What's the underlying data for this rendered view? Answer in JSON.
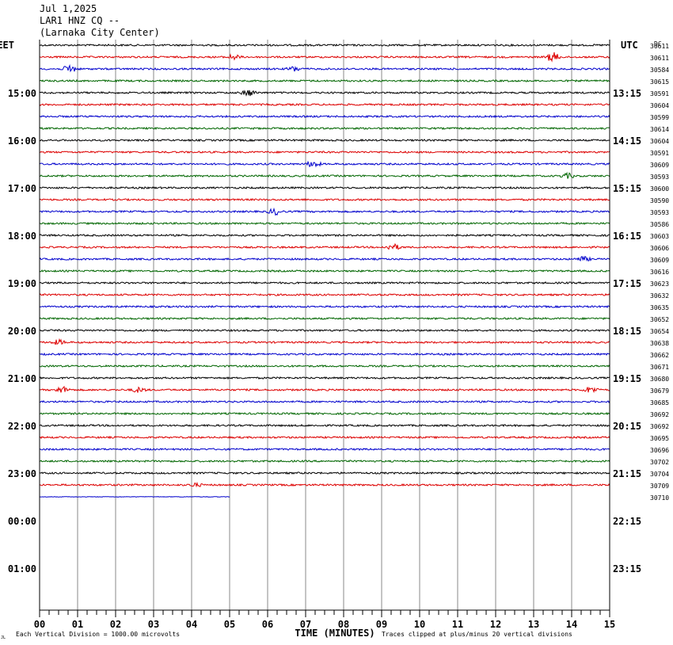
{
  "header": {
    "date": "Jul 1,2025",
    "station": "LAR1 HNZ CQ --",
    "location": "(Larnaka City Center)"
  },
  "left_zone": "EET",
  "right_zone": "UTC",
  "dc_label": "DC",
  "footer": {
    "scale_note": "Each Vertical Division = 1000.00 microvolts",
    "x_title": "TIME (MINUTES)",
    "clip_note": "Traces clipped at plus/minus 20 vertical divisions",
    "corner_mark": "JL"
  },
  "colors": {
    "cycle": [
      "#000000",
      "#dd0000",
      "#0000cc",
      "#006600"
    ],
    "grid": "#888888",
    "axis": "#000000"
  },
  "chart_data": {
    "type": "line",
    "title": "",
    "xlabel": "TIME (MINUTES)",
    "xlim": [
      0,
      15
    ],
    "x_ticks": [
      "00",
      "01",
      "02",
      "03",
      "04",
      "05",
      "06",
      "07",
      "08",
      "09",
      "10",
      "11",
      "12",
      "13",
      "14",
      "15"
    ],
    "rows_total": 48,
    "row_minutes": 15,
    "left_hour_labels": [
      {
        "row": 4,
        "text": "15:00"
      },
      {
        "row": 8,
        "text": "16:00"
      },
      {
        "row": 12,
        "text": "17:00"
      },
      {
        "row": 16,
        "text": "18:00"
      },
      {
        "row": 20,
        "text": "19:00"
      },
      {
        "row": 24,
        "text": "20:00"
      },
      {
        "row": 28,
        "text": "21:00"
      },
      {
        "row": 32,
        "text": "22:00"
      },
      {
        "row": 36,
        "text": "23:00"
      },
      {
        "row": 40,
        "text": "00:00"
      },
      {
        "row": 44,
        "text": "01:00"
      }
    ],
    "right_hour_labels": [
      {
        "row": 4,
        "text": "13:15"
      },
      {
        "row": 8,
        "text": "14:15"
      },
      {
        "row": 12,
        "text": "15:15"
      },
      {
        "row": 16,
        "text": "16:15"
      },
      {
        "row": 20,
        "text": "17:15"
      },
      {
        "row": 24,
        "text": "18:15"
      },
      {
        "row": 28,
        "text": "19:15"
      },
      {
        "row": 32,
        "text": "20:15"
      },
      {
        "row": 36,
        "text": "21:15"
      },
      {
        "row": 40,
        "text": "22:15"
      },
      {
        "row": 44,
        "text": "23:15"
      }
    ],
    "dc_offsets": [
      "30611",
      "30611",
      "30584",
      "30615",
      "30591",
      "30604",
      "30599",
      "30614",
      "30604",
      "30591",
      "30609",
      "30593",
      "30600",
      "30590",
      "30593",
      "30586",
      "30603",
      "30606",
      "30609",
      "30616",
      "30623",
      "30632",
      "30635",
      "30652",
      "30654",
      "30638",
      "30662",
      "30671",
      "30680",
      "30679",
      "30685",
      "30692",
      "30692",
      "30695",
      "30696",
      "30702",
      "30704",
      "30709",
      "30710"
    ],
    "traces_count": 39,
    "last_trace_end_minute": 5.0,
    "events": [
      {
        "trace": 1,
        "minute": 13.5,
        "amp": 6
      },
      {
        "trace": 1,
        "minute": 5.1,
        "amp": 3
      },
      {
        "trace": 2,
        "minute": 0.8,
        "amp": 5
      },
      {
        "trace": 2,
        "minute": 6.7,
        "amp": 3
      },
      {
        "trace": 4,
        "minute": 5.5,
        "amp": 4
      },
      {
        "trace": 10,
        "minute": 7.2,
        "amp": 4
      },
      {
        "trace": 11,
        "minute": 13.9,
        "amp": 3
      },
      {
        "trace": 14,
        "minute": 6.2,
        "amp": 4
      },
      {
        "trace": 17,
        "minute": 9.3,
        "amp": 4
      },
      {
        "trace": 18,
        "minute": 14.3,
        "amp": 3
      },
      {
        "trace": 25,
        "minute": 0.5,
        "amp": 3
      },
      {
        "trace": 29,
        "minute": 0.6,
        "amp": 4
      },
      {
        "trace": 29,
        "minute": 2.6,
        "amp": 3
      },
      {
        "trace": 29,
        "minute": 14.5,
        "amp": 4
      },
      {
        "trace": 37,
        "minute": 4.1,
        "amp": 2
      }
    ]
  }
}
